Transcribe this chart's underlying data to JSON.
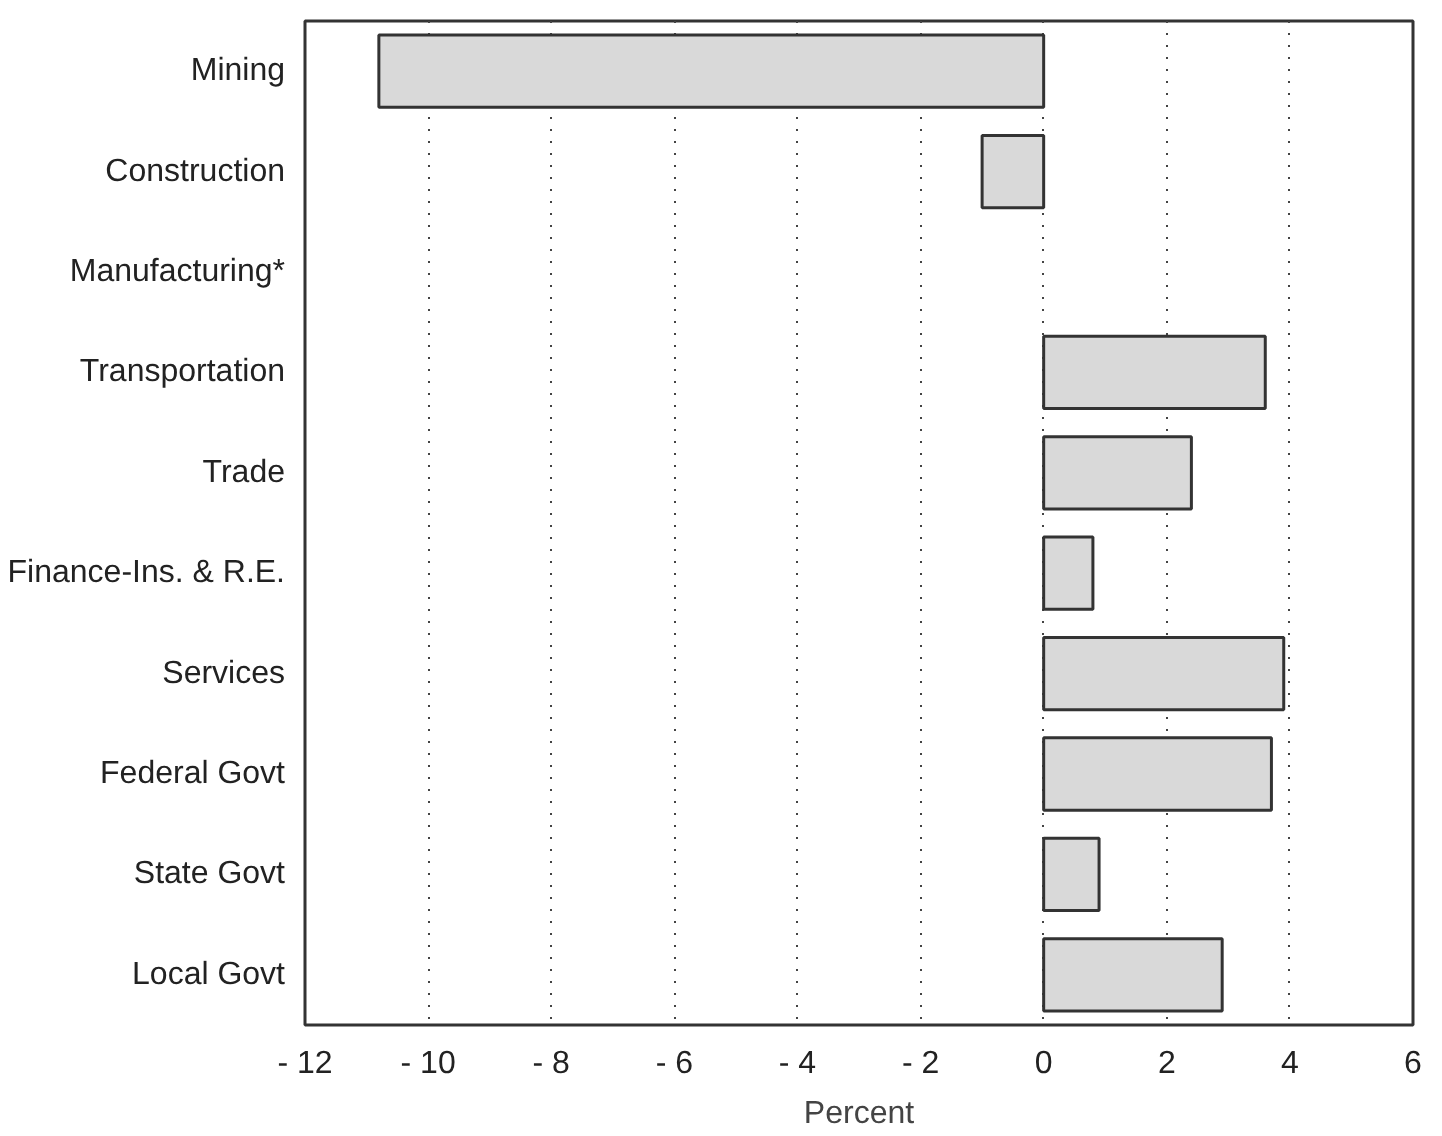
{
  "chart_data": {
    "type": "bar",
    "orientation": "horizontal",
    "xlabel": "Percent",
    "categories": [
      "Mining",
      "Construction",
      "Manufacturing*",
      "Transportation",
      "Trade",
      "Finance-Ins. & R.E.",
      "Services",
      "Federal Govt",
      "State Govt",
      "Local Govt"
    ],
    "values": [
      -10.8,
      -1.0,
      null,
      3.6,
      2.4,
      0.8,
      3.9,
      3.7,
      0.9,
      2.9
    ],
    "color": "#d9d9d9",
    "xlim": [
      -12,
      6
    ],
    "xticks": [
      -12,
      -10,
      -8,
      -6,
      -4,
      -2,
      0,
      2,
      4,
      6
    ],
    "grid": "x"
  }
}
